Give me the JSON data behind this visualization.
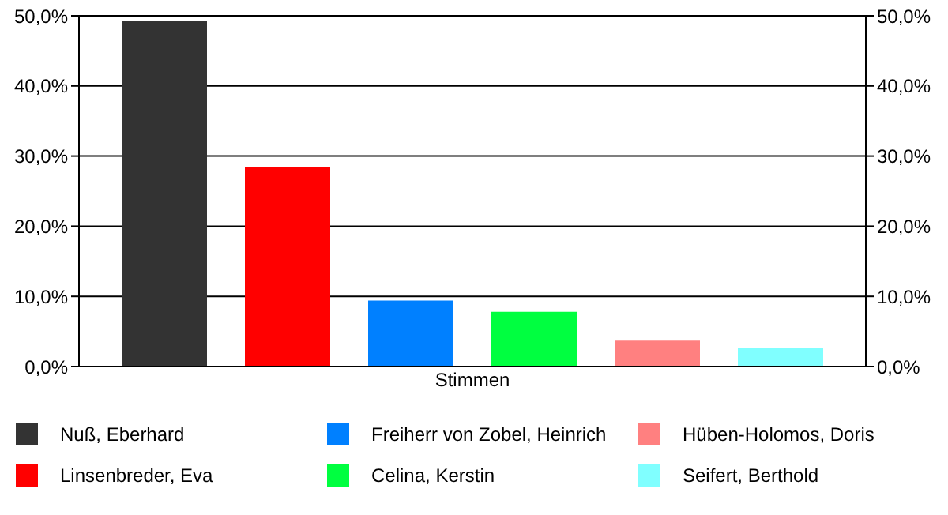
{
  "chart_data": {
    "type": "bar",
    "xlabel": "Stimmen",
    "categories": [
      null
    ],
    "series": [
      {
        "name": "Nuß, Eberhard",
        "color": "#333333",
        "values": [
          49.2
        ]
      },
      {
        "name": "Linsenbreder, Eva",
        "color": "#ff0000",
        "values": [
          28.5
        ]
      },
      {
        "name": "Freiherr von Zobel, Heinrich",
        "color": "#0080ff",
        "values": [
          9.4
        ]
      },
      {
        "name": "Celina, Kerstin",
        "color": "#00ff40",
        "values": [
          7.8
        ]
      },
      {
        "name": "Hüben-Holomos, Doris",
        "color": "#ff8080",
        "values": [
          3.7
        ]
      },
      {
        "name": "Seifert, Berthold",
        "color": "#80ffff",
        "values": [
          2.7
        ]
      }
    ],
    "ylim": [
      0,
      50
    ],
    "yticks": [
      {
        "value": 0,
        "label": "0,0%"
      },
      {
        "value": 10,
        "label": "10,0%"
      },
      {
        "value": 20,
        "label": "20,0%"
      },
      {
        "value": 30,
        "label": "30,0%"
      },
      {
        "value": 40,
        "label": "40,0%"
      },
      {
        "value": 50,
        "label": "50,0%"
      }
    ],
    "y2lim": [
      0,
      50
    ],
    "y2ticks": [
      {
        "value": 0,
        "label": "0,0%"
      },
      {
        "value": 10,
        "label": "10,0%"
      },
      {
        "value": 20,
        "label": "20,0%"
      },
      {
        "value": 30,
        "label": "30,0%"
      },
      {
        "value": 40,
        "label": "40,0%"
      },
      {
        "value": 50,
        "label": "50,0%"
      }
    ],
    "grid": "y",
    "legend": "bottom"
  }
}
